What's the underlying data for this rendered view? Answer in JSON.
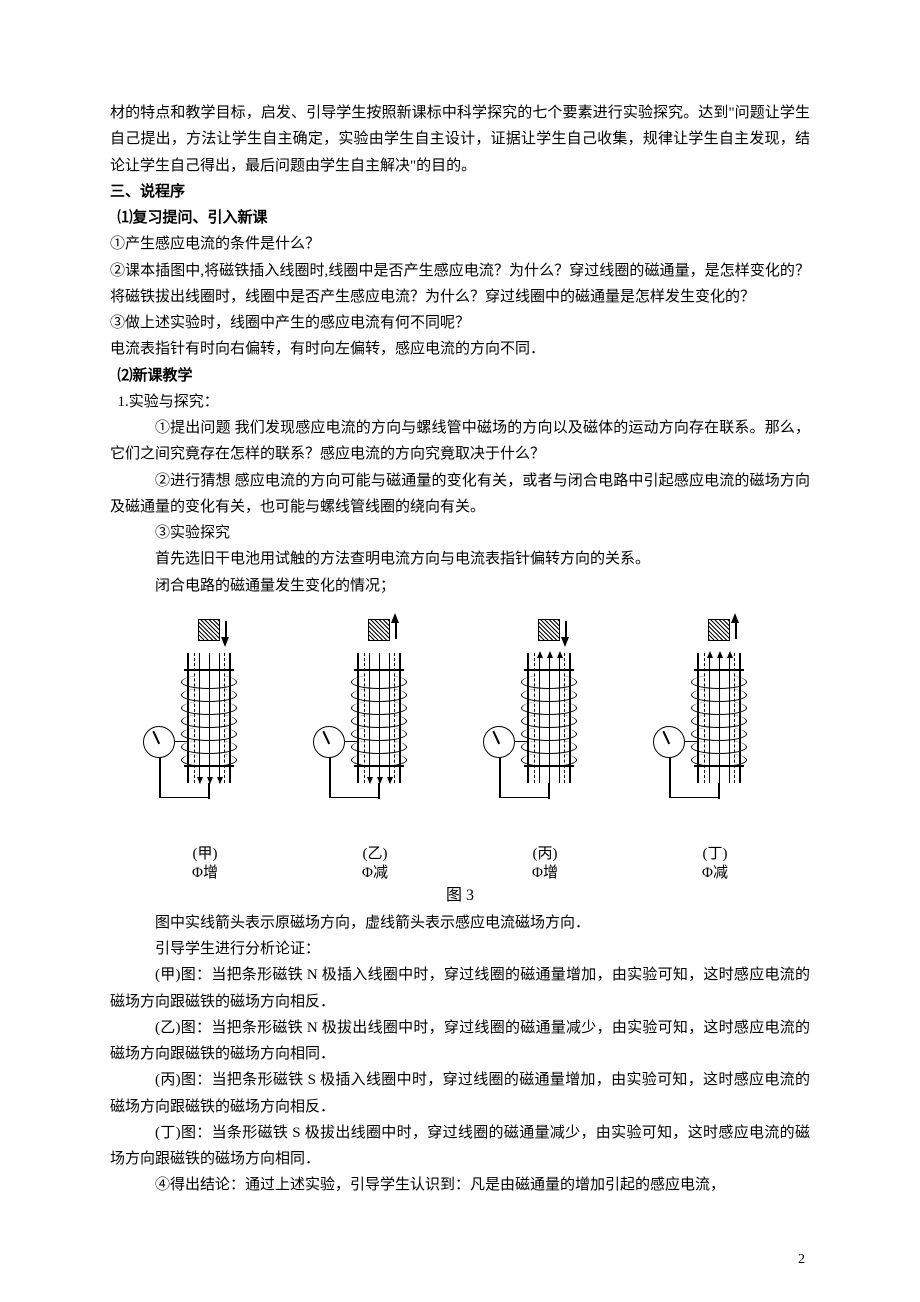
{
  "intro": {
    "p1": "材的特点和教学目标，启发、引导学生按照新课标中科学探究的七个要素进行实验探究。达到\"问题让学生自己提出，方法让学生自主确定，实验由学生自主设计，证据让学生自己收集，规律让学生自主发现，结论让学生自己得出，最后问题由学生自主解决\"的目的。"
  },
  "s3": {
    "title": "三、说程序",
    "part1_title": "⑴复习提问、引入新课",
    "q1": "①产生感应电流的条件是什么？",
    "q2": "②课本插图中,将磁铁插入线圈时,线圈中是否产生感应电流？为什么？穿过线圈的磁通量，是怎样变化的？将磁铁拔出线圈时，线圈中是否产生感应电流？为什么？穿过线圈中的磁通量是怎样发生变化的？",
    "q3": "③做上述实验时，线圈中产生的感应电流有何不同呢？",
    "q4": "电流表指针有时向右偏转，有时向左偏转，感应电流的方向不同．",
    "part2_title": "⑵新课教学",
    "exp_title": "1.实验与探究：",
    "exp1": "①提出问题  我们发现感应电流的方向与螺线管中磁场的方向以及磁体的运动方向存在联系。那么，它们之间究竟存在怎样的联系？感应电流的方向究竟取决于什么？",
    "exp2": "②进行猜想  感应电流的方向可能与磁通量的变化有关，或者与闭合电路中引起感应电流的磁场方向及磁通量的变化有关，也可能与螺线管线圈的绕向有关。",
    "exp3": "③实验探究",
    "exp3a": "首先选旧干电池用试触的方法查明电流方向与电流表指针偏转方向的关系。",
    "exp3b": "闭合电路的磁通量发生变化的情况；"
  },
  "diagrams": [
    {
      "label_top": "(甲)",
      "label_bot": "Φ增",
      "motion": "down"
    },
    {
      "label_top": "(乙)",
      "label_bot": "Φ减",
      "motion": "up"
    },
    {
      "label_top": "(丙)",
      "label_bot": "Φ增",
      "motion": "down"
    },
    {
      "label_top": "(丁)",
      "label_bot": "Φ减",
      "motion": "up"
    }
  ],
  "fig_caption": "图 3",
  "analysis": {
    "legend": "图中实线箭头表示原磁场方向，虚线箭头表示感应电流磁场方向．",
    "lead": "引导学生进行分析论证：",
    "jia": "(甲)图：当把条形磁铁 N 极插入线圈中时，穿过线圈的磁通量增加，由实验可知，这时感应电流的磁场方向跟磁铁的磁场方向相反．",
    "yi": "(乙)图：当把条形磁铁 N 极拔出线圈中时，穿过线圈的磁通量减少，由实验可知，这时感应电流的磁场方向跟磁铁的磁场方向相同．",
    "bing": "(丙)图：当把条形磁铁 S 极插入线圈中时，穿过线圈的磁通量增加，由实验可知，这时感应电流的磁场方向跟磁铁的磁场方向相反．",
    "ding": "(丁)图：当条形磁铁 S 极拔出线圈中时，穿过线圈的磁通量减少，由实验可知，这时感应电流的磁场方向跟磁铁的磁场方向相同．",
    "conclusion": "④得出结论：通过上述实验，引导学生认识到：凡是由磁通量的增加引起的感应电流，"
  },
  "page_number": "2"
}
